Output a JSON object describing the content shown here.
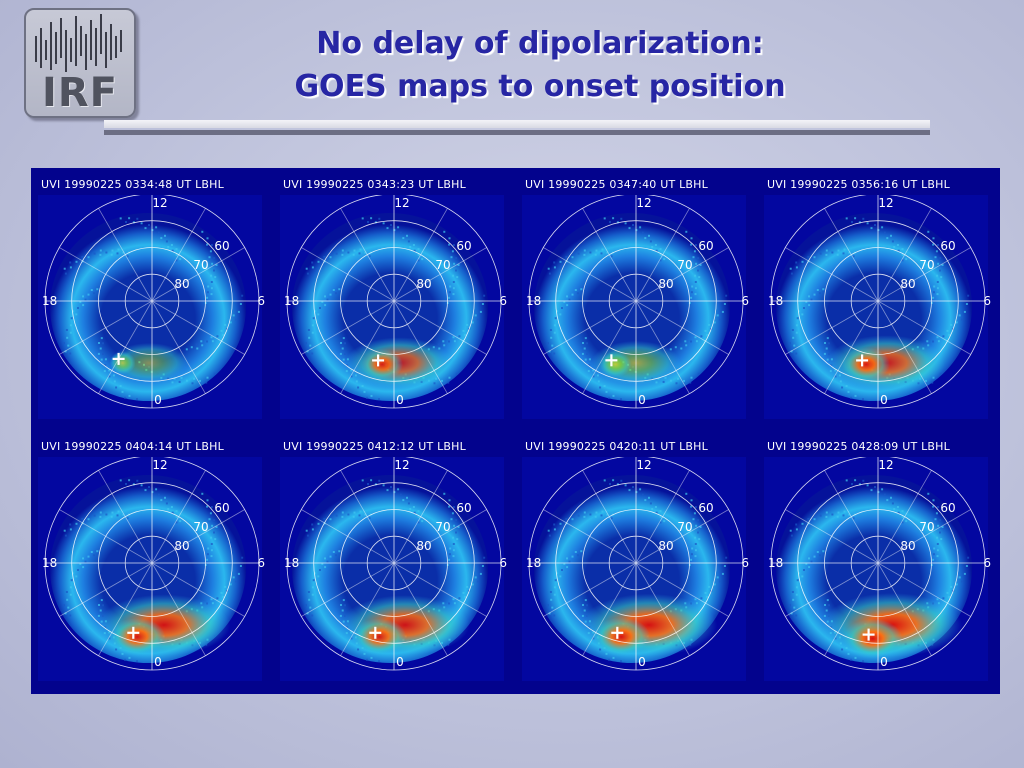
{
  "logo": {
    "text": "IRF"
  },
  "title": {
    "line1": "No delay of dipolarization:",
    "line2": "GOES maps to onset position"
  },
  "grid_labels": {
    "noon": "12",
    "dusk": "18",
    "dawn": "6",
    "midnight": "0",
    "lat60": "60",
    "lat70": "70",
    "lat80": "80"
  },
  "panels": [
    {
      "label": "UVI 19990225 0334:48 UT LBHL",
      "onset_mlt": 22.0,
      "onset_mlat": 65,
      "intensity": 0.15
    },
    {
      "label": "UVI 19990225 0343:23 UT LBHL",
      "onset_mlt": 23.0,
      "onset_mlat": 67,
      "intensity": 0.55
    },
    {
      "label": "UVI 19990225 0347:40 UT LBHL",
      "onset_mlt": 22.5,
      "onset_mlat": 66,
      "intensity": 0.3
    },
    {
      "label": "UVI 19990225 0356:16 UT LBHL",
      "onset_mlt": 23.0,
      "onset_mlat": 67,
      "intensity": 0.7
    },
    {
      "label": "UVI 19990225 0404:14 UT LBHL",
      "onset_mlt": 23.0,
      "onset_mlat": 63,
      "intensity": 0.9
    },
    {
      "label": "UVI 19990225 0412:12 UT LBHL",
      "onset_mlt": 23.0,
      "onset_mlat": 63,
      "intensity": 0.85
    },
    {
      "label": "UVI 19990225 0420:11 UT LBHL",
      "onset_mlt": 23.0,
      "onset_mlat": 63,
      "intensity": 0.95
    },
    {
      "label": "UVI 19990225 0428:09 UT LBHL",
      "onset_mlt": 23.5,
      "onset_mlat": 63,
      "intensity": 1.0
    }
  ],
  "colors": {
    "background": "#bfc3dc",
    "title_text": "#2726a4",
    "panel_background": "#03038d",
    "onset_marker": "#ffffff"
  }
}
